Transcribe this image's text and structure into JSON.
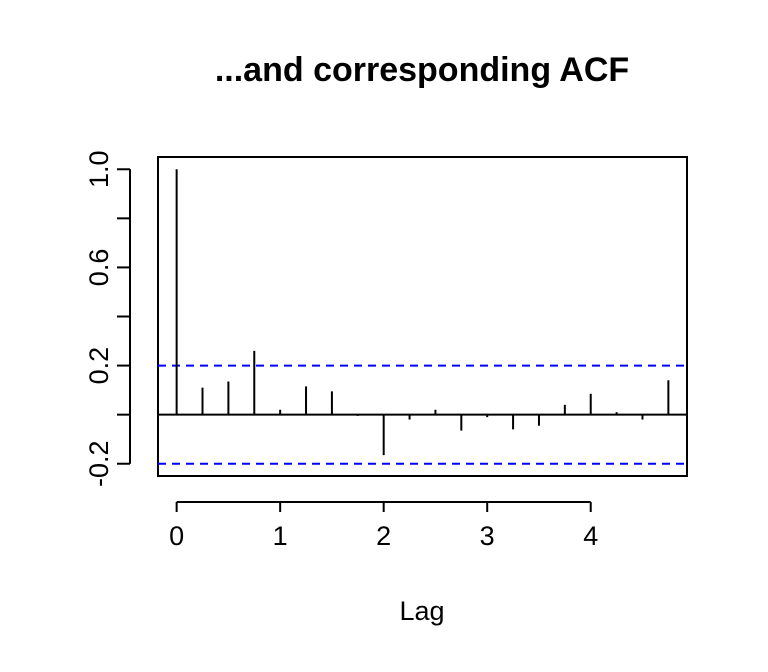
{
  "chart_data": {
    "type": "bar",
    "title": "...and corresponding ACF",
    "xlabel": "Lag",
    "ylabel": "",
    "xlim": [
      -0.18,
      4.93
    ],
    "ylim": [
      -0.25,
      1.05
    ],
    "xticks": [
      0,
      1,
      2,
      3,
      4
    ],
    "xtick_labels": [
      "0",
      "1",
      "2",
      "3",
      "4"
    ],
    "yticks": [
      -0.2,
      0.0,
      0.2,
      0.4,
      0.6,
      0.8,
      1.0
    ],
    "ytick_labels": [
      "-0.2",
      "",
      "0.2",
      "",
      "0.6",
      "",
      "1.0"
    ],
    "confidence_bound": 0.2,
    "confidence_line_color": "#0000ff",
    "series": [
      {
        "x": [
          0,
          0.25,
          0.5,
          0.75,
          1.0,
          1.25,
          1.5,
          1.75,
          2.0,
          2.25,
          2.5,
          2.75,
          3.0,
          3.25,
          3.5,
          3.75,
          4.0,
          4.25,
          4.5,
          4.75
        ],
        "values": [
          1.0,
          0.11,
          0.135,
          0.26,
          0.02,
          0.115,
          0.095,
          -0.005,
          -0.165,
          -0.02,
          0.02,
          -0.065,
          -0.01,
          -0.06,
          -0.045,
          0.04,
          0.085,
          0.01,
          -0.02,
          0.14
        ]
      }
    ],
    "grid": false,
    "legend": "none"
  }
}
